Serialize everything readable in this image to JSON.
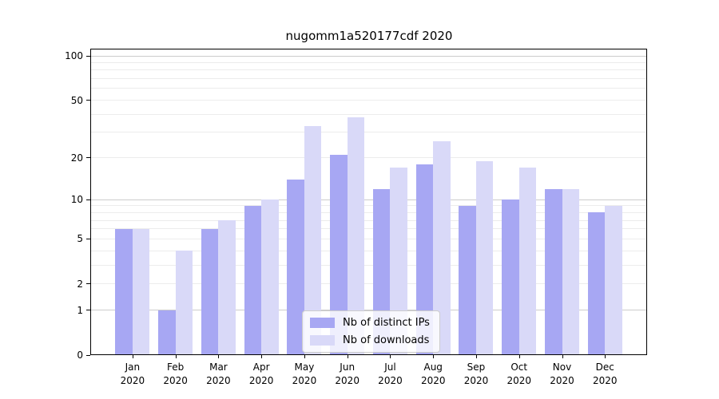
{
  "chart_data": {
    "type": "bar",
    "title": "nugomm1a520177cdf 2020",
    "categories": [
      "Jan 2020",
      "Feb 2020",
      "Mar 2020",
      "Apr 2020",
      "May 2020",
      "Jun 2020",
      "Jul 2020",
      "Aug 2020",
      "Sep 2020",
      "Oct 2020",
      "Nov 2020",
      "Dec 2020"
    ],
    "series": [
      {
        "name": "Nb of distinct IPs",
        "color": "#a7a7f3",
        "values": [
          6,
          1,
          6,
          9,
          14,
          21,
          12,
          18,
          9,
          10,
          12,
          8
        ]
      },
      {
        "name": "Nb of downloads",
        "color": "#d9d9f8",
        "values": [
          6,
          4,
          7,
          10,
          33,
          38,
          17,
          26,
          19,
          17,
          12,
          9
        ]
      }
    ],
    "y_scale": "symlog",
    "y_ticks": [
      0,
      1,
      2,
      5,
      10,
      20,
      50,
      100
    ],
    "y_major_gridlines": [
      1,
      10,
      100
    ],
    "y_minor_gridlines": [
      2,
      3,
      4,
      5,
      6,
      7,
      8,
      9,
      20,
      30,
      40,
      50,
      60,
      70,
      80,
      90
    ],
    "ylim": [
      0,
      112
    ],
    "xlabel": "",
    "ylabel": "",
    "grid": true,
    "legend_position": "lower center",
    "colors": {
      "major_grid": "#cccccc",
      "minor_grid": "#ececec",
      "axis": "#000000",
      "background": "#ffffff"
    }
  }
}
